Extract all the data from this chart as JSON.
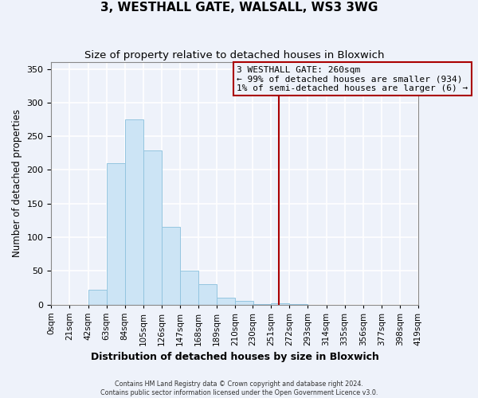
{
  "title": "3, WESTHALL GATE, WALSALL, WS3 3WG",
  "subtitle": "Size of property relative to detached houses in Bloxwich",
  "xlabel": "Distribution of detached houses by size in Bloxwich",
  "ylabel": "Number of detached properties",
  "bar_color": "#cce4f5",
  "bar_edgecolor": "#94c5e0",
  "background_color": "#eef2fa",
  "grid_color": "#ffffff",
  "bin_edges": [
    0,
    21,
    42,
    63,
    84,
    105,
    126,
    147,
    168,
    189,
    210,
    230,
    251,
    272,
    293,
    314,
    335,
    356,
    377,
    398,
    419
  ],
  "bin_labels": [
    "0sqm",
    "21sqm",
    "42sqm",
    "63sqm",
    "84sqm",
    "105sqm",
    "126sqm",
    "147sqm",
    "168sqm",
    "189sqm",
    "210sqm",
    "230sqm",
    "251sqm",
    "272sqm",
    "293sqm",
    "314sqm",
    "335sqm",
    "356sqm",
    "377sqm",
    "398sqm",
    "419sqm"
  ],
  "bar_heights": [
    0,
    0,
    22,
    210,
    275,
    229,
    115,
    50,
    30,
    10,
    5,
    1,
    2,
    1,
    0,
    0,
    0,
    0,
    0,
    0
  ],
  "property_value": 260,
  "vline_color": "#aa0000",
  "annotation_line1": "3 WESTHALL GATE: 260sqm",
  "annotation_line2": "← 99% of detached houses are smaller (934)",
  "annotation_line3": "1% of semi-detached houses are larger (6) →",
  "ylim": [
    0,
    360
  ],
  "yticks": [
    0,
    50,
    100,
    150,
    200,
    250,
    300,
    350
  ],
  "footer_line1": "Contains HM Land Registry data © Crown copyright and database right 2024.",
  "footer_line2": "Contains public sector information licensed under the Open Government Licence v3.0."
}
